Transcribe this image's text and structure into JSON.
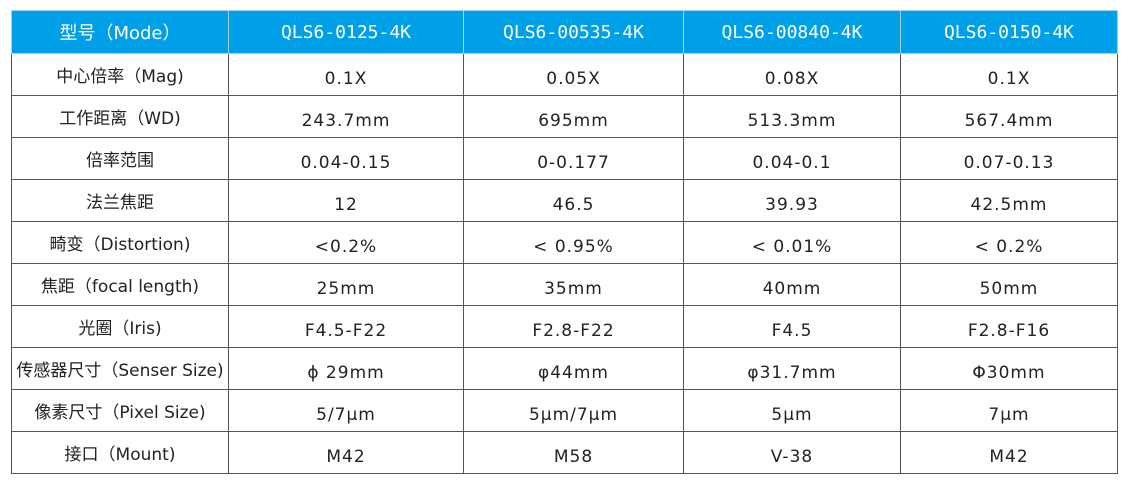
{
  "header": [
    "型号（Mode）",
    "QLS6-0125-4K",
    "QLS6-00535-4K",
    "QLS6-00840-4K",
    "QLS6-0150-4K"
  ],
  "header_color": "#00a0e9",
  "rows": [
    [
      "中心倍率（Mag)",
      "0.1X",
      "0.05X",
      "0.08X",
      "0.1X"
    ],
    [
      "工作距离（WD)",
      "243.7mm",
      "695mm",
      "513.3mm",
      "567.4mm"
    ],
    [
      "倍率范围",
      "0.04-0.15",
      "0-0.177",
      "0.04-0.1",
      "0.07-0.13"
    ],
    [
      "法兰焦距",
      "12",
      "46.5",
      "39.93",
      "42.5mm"
    ],
    [
      "畸变（Distortion)",
      "<0.2%",
      "< 0.95%",
      "< 0.01%",
      "< 0.2%"
    ],
    [
      "焦距（focal length)",
      "25mm",
      "35mm",
      "40mm",
      "50mm"
    ],
    [
      "光圈（Iris)",
      "F4.5-F22",
      "F2.8-F22",
      "F4.5",
      "F2.8-F16"
    ],
    [
      "传感器尺寸（Senser Size)",
      "ϕ 29mm",
      "φ44mm",
      "φ31.7mm",
      "Φ30mm"
    ],
    [
      "像素尺寸（Pixel Size)",
      "5/7μm",
      "5μm/7μm",
      "5μm",
      "7μm"
    ],
    [
      "接口（Mount)",
      "M42",
      "M58",
      "V-38",
      "M42"
    ]
  ]
}
